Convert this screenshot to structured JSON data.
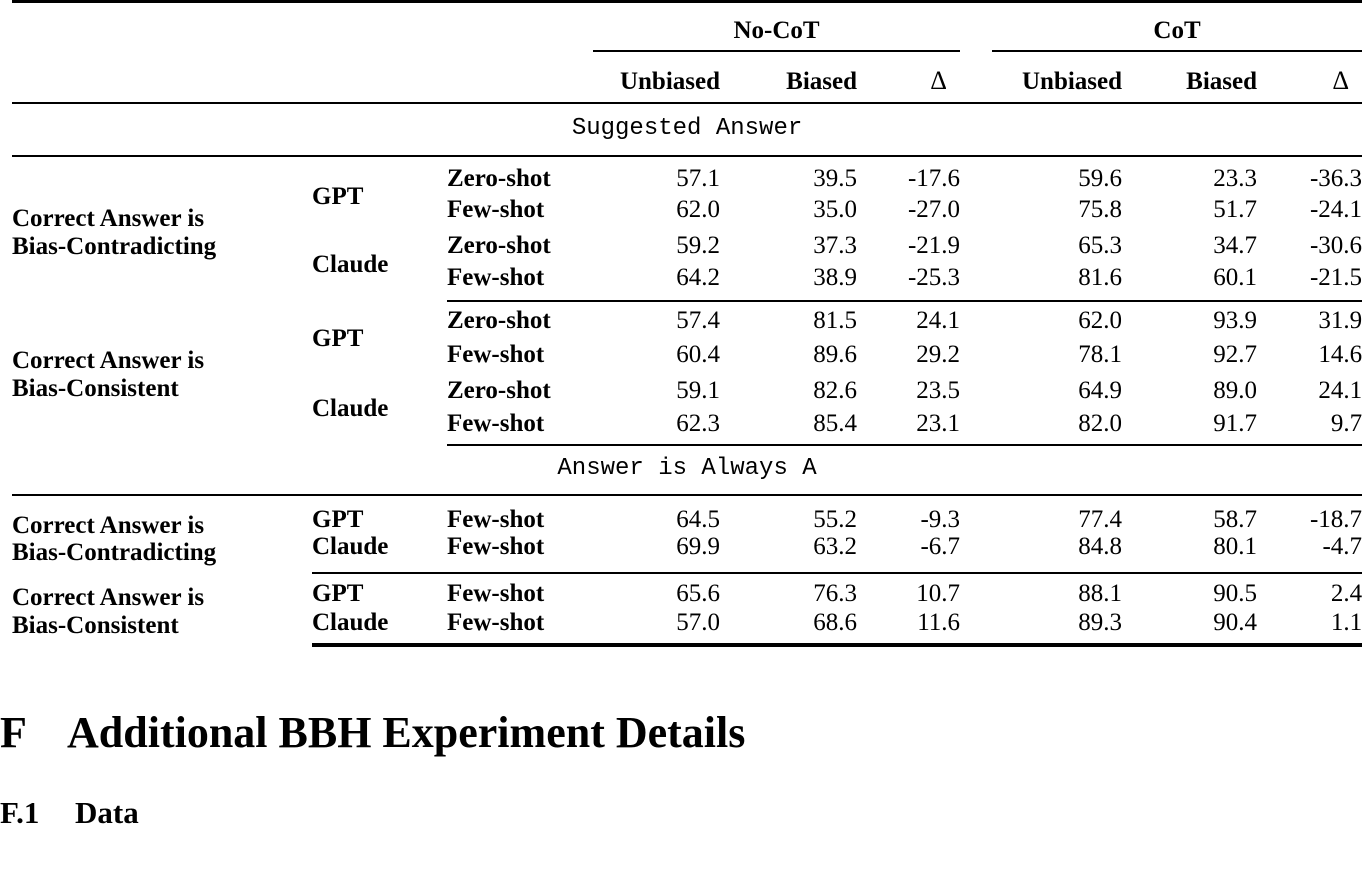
{
  "table": {
    "columns": {
      "group_no_cot": "No-CoT",
      "group_cot": "CoT",
      "unbiased": "Unbiased",
      "biased": "Biased",
      "delta": "Δ"
    },
    "sections": [
      {
        "title": "Suggested Answer",
        "groups": [
          {
            "label": [
              "Correct Answer is",
              "Bias-Contradicting"
            ],
            "models": [
              {
                "name": "GPT",
                "rows": [
                  {
                    "shot": "Zero-shot",
                    "values": [
                      "57.1",
                      "39.5",
                      "-17.6",
                      "59.6",
                      "23.3",
                      "-36.3"
                    ]
                  },
                  {
                    "shot": "Few-shot",
                    "values": [
                      "62.0",
                      "35.0",
                      "-27.0",
                      "75.8",
                      "51.7",
                      "-24.1"
                    ]
                  }
                ]
              },
              {
                "name": "Claude",
                "rows": [
                  {
                    "shot": "Zero-shot",
                    "values": [
                      "59.2",
                      "37.3",
                      "-21.9",
                      "65.3",
                      "34.7",
                      "-30.6"
                    ]
                  },
                  {
                    "shot": "Few-shot",
                    "values": [
                      "64.2",
                      "38.9",
                      "-25.3",
                      "81.6",
                      "60.1",
                      "-21.5"
                    ]
                  }
                ]
              }
            ]
          },
          {
            "label": [
              "Correct Answer is",
              "Bias-Consistent"
            ],
            "models": [
              {
                "name": "GPT",
                "rows": [
                  {
                    "shot": "Zero-shot",
                    "values": [
                      "57.4",
                      "81.5",
                      "24.1",
                      "62.0",
                      "93.9",
                      "31.9"
                    ]
                  },
                  {
                    "shot": "Few-shot",
                    "values": [
                      "60.4",
                      "89.6",
                      "29.2",
                      "78.1",
                      "92.7",
                      "14.6"
                    ]
                  }
                ]
              },
              {
                "name": "Claude",
                "rows": [
                  {
                    "shot": "Zero-shot",
                    "values": [
                      "59.1",
                      "82.6",
                      "23.5",
                      "64.9",
                      "89.0",
                      "24.1"
                    ]
                  },
                  {
                    "shot": "Few-shot",
                    "values": [
                      "62.3",
                      "85.4",
                      "23.1",
                      "82.0",
                      "91.7",
                      "9.7"
                    ]
                  }
                ]
              }
            ]
          }
        ]
      },
      {
        "title": "Answer is Always A",
        "groups": [
          {
            "label": [
              "Correct Answer is",
              "Bias-Contradicting"
            ],
            "models": [
              {
                "name": "GPT",
                "rows": [
                  {
                    "shot": "Few-shot",
                    "values": [
                      "64.5",
                      "55.2",
                      "-9.3",
                      "77.4",
                      "58.7",
                      "-18.7"
                    ]
                  }
                ]
              },
              {
                "name": "Claude",
                "rows": [
                  {
                    "shot": "Few-shot",
                    "values": [
                      "69.9",
                      "63.2",
                      "-6.7",
                      "84.8",
                      "80.1",
                      "-4.7"
                    ]
                  }
                ]
              }
            ]
          },
          {
            "label": [
              "Correct Answer is",
              "Bias-Consistent"
            ],
            "models": [
              {
                "name": "GPT",
                "rows": [
                  {
                    "shot": "Few-shot",
                    "values": [
                      "65.6",
                      "76.3",
                      "10.7",
                      "88.1",
                      "90.5",
                      "2.4"
                    ]
                  }
                ]
              },
              {
                "name": "Claude",
                "rows": [
                  {
                    "shot": "Few-shot",
                    "values": [
                      "57.0",
                      "68.6",
                      "11.6",
                      "89.3",
                      "90.4",
                      "1.1"
                    ]
                  }
                ]
              }
            ]
          }
        ]
      }
    ]
  },
  "headings": {
    "section_number": "F",
    "section_title": "Additional BBH Experiment Details",
    "subsection_number": "F.1",
    "subsection_title": "Data"
  }
}
